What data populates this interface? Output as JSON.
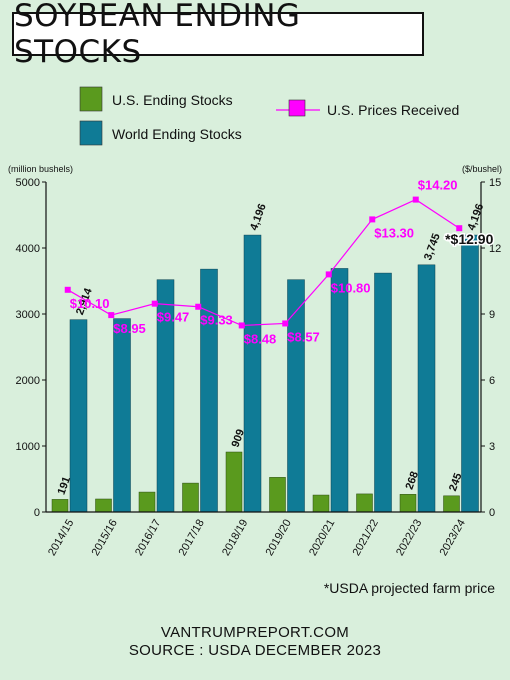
{
  "title": "SOYBEAN ENDING STOCKS",
  "footnote": "*USDA projected farm price",
  "footer_site": "VANTRUMPREPORT.COM",
  "footer_source": "SOURCE : USDA DECEMBER 2023",
  "colors": {
    "background": "#d9efdc",
    "us_bar": "#5a9a1e",
    "world_bar": "#0f7b96",
    "price_line": "#ff00ff"
  },
  "chart_data": {
    "type": "bar",
    "categories": [
      "2014/15",
      "2015/16",
      "2016/17",
      "2017/18",
      "2018/19",
      "2019/20",
      "2020/21",
      "2021/22",
      "2022/23",
      "2023/24"
    ],
    "left_axis_label": "(million bushels)",
    "right_axis_label": "($/bushel)",
    "left_ylim": [
      0,
      5000
    ],
    "left_ticks": [
      0,
      1000,
      2000,
      3000,
      4000,
      5000
    ],
    "right_ylim": [
      0,
      15
    ],
    "right_ticks": [
      0,
      3,
      6,
      9,
      12,
      15
    ],
    "legend_placement": "top",
    "series": [
      {
        "name": "U.S. Ending Stocks",
        "kind": "bar",
        "values": [
          191,
          197,
          302,
          438,
          909,
          525,
          257,
          274,
          268,
          245
        ],
        "labels": [
          "191",
          "",
          "",
          "",
          "909",
          "",
          "",
          "",
          "268",
          "245"
        ]
      },
      {
        "name": "World Ending Stocks",
        "kind": "bar",
        "values": [
          2914,
          2930,
          3520,
          3680,
          4196,
          3520,
          3690,
          3620,
          3745,
          4196
        ],
        "labels": [
          "2,914",
          "",
          "",
          "",
          "4,196",
          "",
          "",
          "",
          "3,745",
          "4,196"
        ]
      },
      {
        "name": "U.S. Prices Received",
        "kind": "line",
        "axis": "right",
        "values": [
          10.1,
          8.95,
          9.47,
          9.33,
          8.48,
          8.57,
          10.8,
          13.3,
          14.2,
          12.9
        ],
        "labels": [
          "$10.10",
          "$8.95",
          "$9.47",
          "$9.33",
          "$8.48",
          "$8.57",
          "$10.80",
          "$13.30",
          "$14.20",
          "*$12.90"
        ]
      }
    ]
  }
}
